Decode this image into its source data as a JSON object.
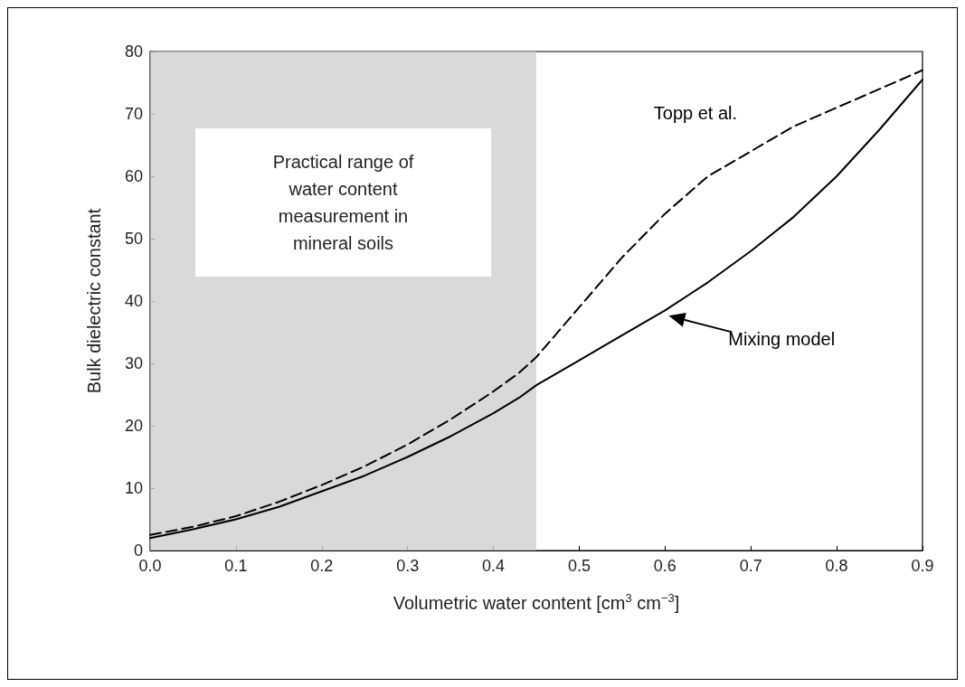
{
  "chart_data": {
    "type": "line",
    "xlabel": "Volumetric water content [cm$^{3}$ cm$^{−3}$]",
    "ylabel": "Bulk dielectric constant",
    "x": [
      0,
      0.05,
      0.1,
      0.15,
      0.2,
      0.25,
      0.3,
      0.35,
      0.4,
      0.43,
      0.45,
      0.5,
      0.55,
      0.6,
      0.65,
      0.7,
      0.75,
      0.8,
      0.85,
      0.9
    ],
    "series": [
      {
        "name": "Topp et al.",
        "color": "#000000",
        "line_style": "dashed",
        "values": [
          2.5,
          3.8,
          5.5,
          7.8,
          10.5,
          13.5,
          17,
          21,
          25.5,
          28.5,
          31,
          39,
          47,
          54,
          60,
          64,
          68,
          71,
          74,
          77
        ]
      },
      {
        "name": "Mixing model",
        "color": "#000000",
        "line_style": "solid",
        "values": [
          2,
          3.4,
          5,
          7,
          9.5,
          12,
          15,
          18.3,
          22,
          24.5,
          26.5,
          30.5,
          34.5,
          38.5,
          43,
          48,
          53.5,
          60,
          67.5,
          75.5
        ]
      }
    ],
    "xlim": [
      0,
      0.9
    ],
    "xticks": [
      {
        "value": 0,
        "label": "0.0"
      },
      0.1,
      0.2,
      0.3,
      0.4,
      0.5,
      0.6,
      0.7,
      0.8,
      0.9
    ],
    "ylim": [
      0,
      80
    ],
    "yticks": [
      0,
      10,
      20,
      30,
      40,
      50,
      60,
      70,
      80
    ],
    "bands": [
      {
        "axis": "x",
        "from": 0,
        "to": 0.45,
        "label": "Practical range of water content measurement in mineral soils",
        "color": "#cfcfcf"
      }
    ],
    "grid": false,
    "legend": false,
    "marker": "none"
  }
}
